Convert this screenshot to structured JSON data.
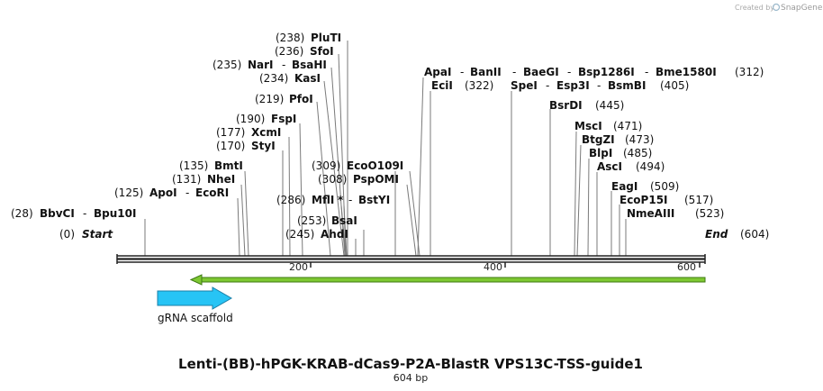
{
  "credit": {
    "prefix": "Created by",
    "brand": "SnapGene"
  },
  "title": "Lenti-(BB)-hPGK-KRAB-dCas9-P2A-BlastR VPS13C-TSS-guide1",
  "length_label": "604 bp",
  "ends": {
    "start": {
      "label": "Start",
      "pos": "(0)"
    },
    "end": {
      "label": "End",
      "pos": "(604)"
    }
  },
  "ruler": {
    "ticks": [
      "200",
      "400",
      "600"
    ]
  },
  "features": {
    "grna_scaffold": {
      "label": "gRNA scaffold",
      "color": "#27c4f5"
    },
    "primer_arrow": {
      "color": "#7ec832"
    }
  },
  "sites": [
    {
      "pos": "(28)",
      "enzyme": "BbvCI",
      "sep": "-",
      "enzyme2": "Bpu10I"
    },
    {
      "pos": "(125)",
      "enzyme": "ApoI",
      "sep": "-",
      "enzyme2": "EcoRI"
    },
    {
      "pos": "(131)",
      "enzyme": "NheI"
    },
    {
      "pos": "(135)",
      "enzyme": "BmtI"
    },
    {
      "pos": "(170)",
      "enzyme": "StyI"
    },
    {
      "pos": "(177)",
      "enzyme": "XcmI"
    },
    {
      "pos": "(190)",
      "enzyme": "FspI"
    },
    {
      "pos": "(219)",
      "enzyme": "PfoI"
    },
    {
      "pos": "(234)",
      "enzyme": "KasI"
    },
    {
      "pos": "(235)",
      "enzyme": "NarI",
      "sep": "-",
      "enzyme2": "BsaHI"
    },
    {
      "pos": "(236)",
      "enzyme": "SfoI"
    },
    {
      "pos": "(238)",
      "enzyme": "PluTI"
    },
    {
      "pos": "(245)",
      "enzyme": "AhdI"
    },
    {
      "pos": "(253)",
      "enzyme": "BsaI"
    },
    {
      "pos": "(286)",
      "enzyme": "MflI",
      "star": "*",
      "sep": "-",
      "enzyme2": "BstYI"
    },
    {
      "pos": "(308)",
      "enzyme": "PspOMI"
    },
    {
      "pos": "(309)",
      "enzyme": "EcoO109I"
    },
    {
      "enzyme": "ApaI",
      "sep": "-",
      "enzyme2": "BanII",
      "sep2": "-",
      "enzyme3": "BaeGI",
      "sep3": "-",
      "enzyme4": "Bsp1286I",
      "sep4": "-",
      "enzyme5": "Bme1580I",
      "pos": "(312)"
    },
    {
      "enzyme": "EciI",
      "pos": "(322)"
    },
    {
      "enzyme": "SpeI",
      "sep": "-",
      "enzyme2": "Esp3I",
      "sep2": "-",
      "enzyme3": "BsmBI",
      "pos": "(405)"
    },
    {
      "enzyme": "BsrDI",
      "pos": "(445)"
    },
    {
      "enzyme": "MscI",
      "pos": "(471)"
    },
    {
      "enzyme": "BtgZI",
      "pos": "(473)"
    },
    {
      "enzyme": "BlpI",
      "pos": "(485)"
    },
    {
      "enzyme": "AscI",
      "pos": "(494)"
    },
    {
      "enzyme": "EagI",
      "pos": "(509)"
    },
    {
      "enzyme": "EcoP15I",
      "pos": "(517)"
    },
    {
      "enzyme": "NmeAIII",
      "pos": "(523)"
    }
  ]
}
